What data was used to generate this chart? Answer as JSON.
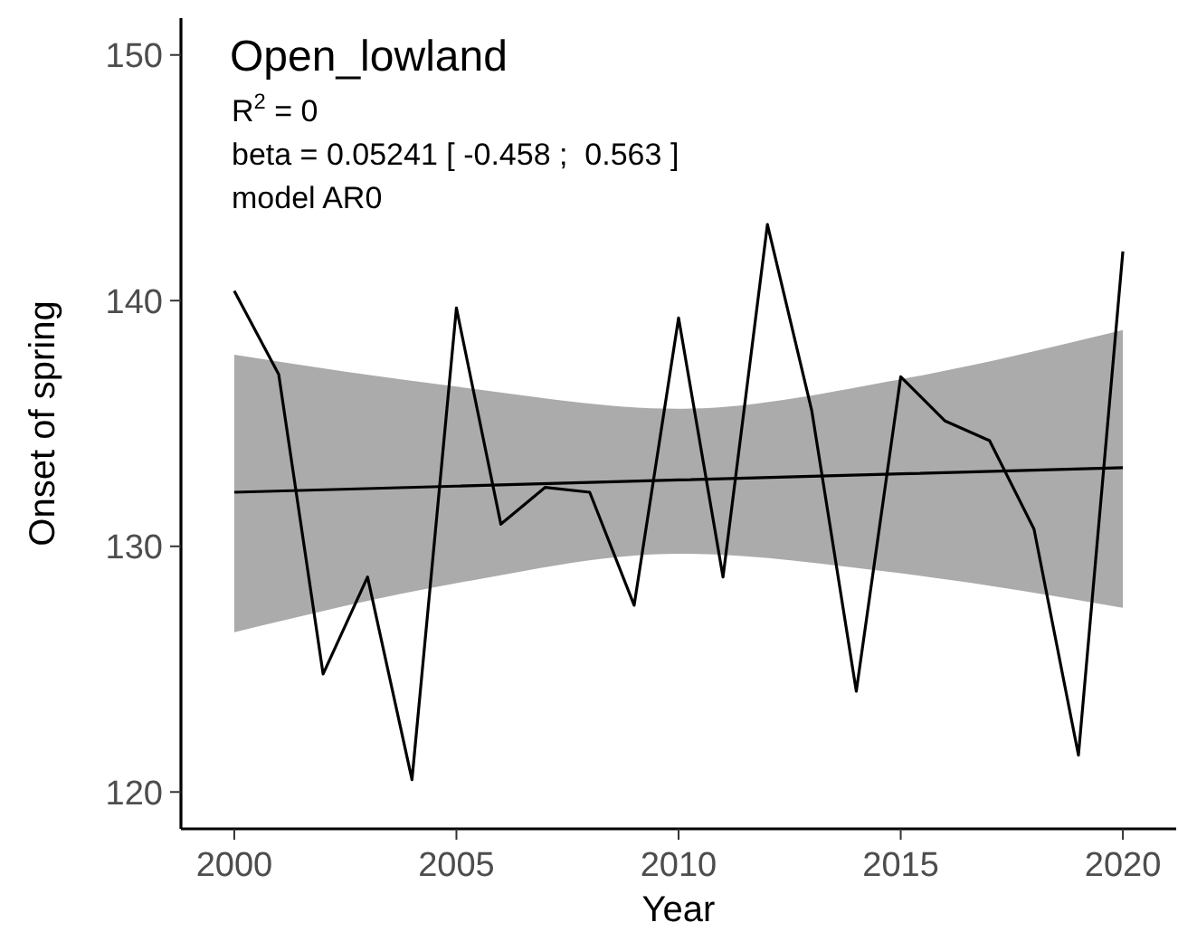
{
  "chart_data": {
    "type": "line",
    "title": "Open_lowland",
    "xlabel": "Year",
    "ylabel": "Onset of spring",
    "annotations": [
      "R$^{2}$ = 0",
      "beta = 0.05241 [ -0.458 ;  0.563 ]",
      "model AR0"
    ],
    "x": [
      2000,
      2001,
      2002,
      2003,
      2004,
      2005,
      2006,
      2007,
      2008,
      2009,
      2010,
      2011,
      2012,
      2013,
      2014,
      2015,
      2016,
      2017,
      2018,
      2019,
      2020
    ],
    "series": [
      {
        "color": "#000000",
        "values": [
          140.4,
          137.0,
          124.8,
          128.75,
          120.5,
          139.7,
          130.9,
          132.4,
          132.2,
          127.6,
          139.3,
          128.75,
          143.1,
          135.5,
          124.1,
          136.9,
          135.1,
          134.3,
          130.7,
          121.5,
          142.0
        ]
      },
      {
        "type": "line",
        "color": "#000000",
        "x": [
          2000,
          2005,
          2010,
          2015,
          2020
        ],
        "values": [
          132.2,
          132.45,
          132.7,
          132.95,
          133.2
        ],
        "lower": [
          126.5,
          128.5,
          129.7,
          128.9,
          127.5
        ],
        "upper": [
          137.8,
          136.5,
          135.6,
          136.8,
          138.8
        ]
      }
    ],
    "xlim": [
      1998.8,
      2021.2
    ],
    "ylim": [
      118.5,
      151.5
    ],
    "xticks": [
      2000,
      2005,
      2010,
      2015,
      2020
    ],
    "yticks": [
      120,
      130,
      140,
      150
    ],
    "grid": false
  }
}
